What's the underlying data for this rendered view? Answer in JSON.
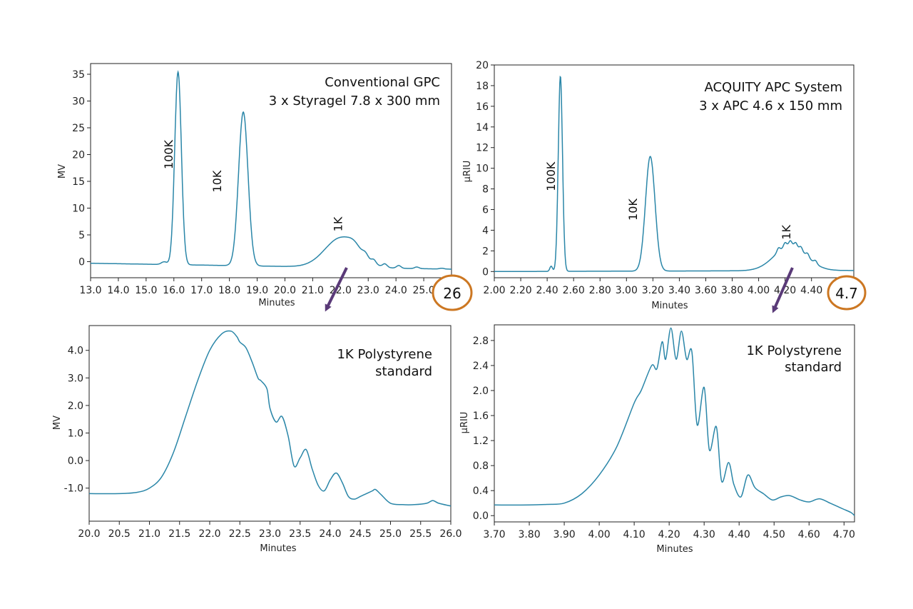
{
  "colors": {
    "trace": "#2a86a8",
    "axis": "#222222",
    "circle": "#cc7722",
    "arrow": "#5a3a78"
  },
  "callouts": [
    "26",
    "4.7"
  ],
  "chart_data": [
    {
      "type": "line",
      "title": "Conventional GPC",
      "subtitle": "3 x Styragel 7.8 x 300 mm",
      "xlabel": "Minutes",
      "ylabel": "MV",
      "xlim": [
        13.0,
        26.0
      ],
      "ylim": [
        -3,
        37
      ],
      "xticks": [
        "13.0",
        "14.0",
        "15.0",
        "16.0",
        "17.0",
        "18.0",
        "19.0",
        "20.0",
        "21.0",
        "22.0",
        "23.0",
        "24.0",
        "25.0"
      ],
      "yticks": [
        "0",
        "5",
        "10",
        "15",
        "20",
        "25",
        "30",
        "35"
      ],
      "peak_labels": [
        {
          "label": "100K",
          "x": 15.95,
          "y": 20
        },
        {
          "label": "10K",
          "x": 17.7,
          "y": 15
        },
        {
          "label": "1K",
          "x": 22.05,
          "y": 7
        }
      ],
      "baseline": {
        "x": [
          13.0,
          26.0
        ],
        "y": [
          -0.3,
          -1.4
        ]
      },
      "peaks": [
        {
          "x": 16.15,
          "h": 36.0,
          "w": 0.12
        },
        {
          "x": 15.65,
          "h": 0.5,
          "w": 0.1
        },
        {
          "x": 18.5,
          "h": 28.7,
          "w": 0.17
        },
        {
          "x": 22.05,
          "h": 5.6,
          "w": 0.6
        },
        {
          "x": 22.5,
          "h": 0.8,
          "w": 0.2
        },
        {
          "x": 22.9,
          "h": 0.8,
          "w": 0.1
        },
        {
          "x": 23.2,
          "h": 0.7,
          "w": 0.08
        },
        {
          "x": 23.6,
          "h": 0.6,
          "w": 0.08
        },
        {
          "x": 24.1,
          "h": 0.5,
          "w": 0.08
        },
        {
          "x": 24.75,
          "h": 0.3,
          "w": 0.08
        },
        {
          "x": 25.65,
          "h": 0.15,
          "w": 0.08
        }
      ]
    },
    {
      "type": "line",
      "title": "ACQUITY APC  System",
      "subtitle": "3 x APC  4.6 x 150 mm",
      "xlabel": "Minutes",
      "ylabel": "µRIU",
      "xlim": [
        2.0,
        4.72
      ],
      "ylim": [
        -0.6,
        20
      ],
      "xticks": [
        "2.00",
        "2.20",
        "2.40",
        "2.60",
        "2.80",
        "3.00",
        "3.20",
        "3.40",
        "3.60",
        "3.80",
        "4.00",
        "4.20",
        "4.40"
      ],
      "yticks": [
        "0",
        "2",
        "4",
        "6",
        "8",
        "10",
        "12",
        "14",
        "16",
        "18",
        "20"
      ],
      "peak_labels": [
        {
          "label": "100K",
          "x": 2.46,
          "y": 9.2
        },
        {
          "label": "10K",
          "x": 3.08,
          "y": 6.0
        },
        {
          "label": "1K",
          "x": 4.24,
          "y": 3.8
        }
      ],
      "baseline": {
        "x": [
          2.0,
          4.72
        ],
        "y": [
          0.0,
          0.1
        ]
      },
      "peaks": [
        {
          "x": 2.5,
          "h": 18.9,
          "w": 0.016
        },
        {
          "x": 2.43,
          "h": 0.5,
          "w": 0.01
        },
        {
          "x": 3.18,
          "h": 11.1,
          "w": 0.036
        },
        {
          "x": 4.24,
          "h": 2.4,
          "w": 0.12
        },
        {
          "x": 4.15,
          "h": 0.4,
          "w": 0.012
        },
        {
          "x": 4.2,
          "h": 0.45,
          "w": 0.012
        },
        {
          "x": 4.24,
          "h": 0.5,
          "w": 0.012
        },
        {
          "x": 4.28,
          "h": 0.45,
          "w": 0.012
        },
        {
          "x": 4.32,
          "h": 0.4,
          "w": 0.012
        },
        {
          "x": 4.37,
          "h": 0.35,
          "w": 0.012
        },
        {
          "x": 4.43,
          "h": 0.3,
          "w": 0.012
        }
      ]
    },
    {
      "type": "line",
      "title": "1K Polystyrene",
      "subtitle": "standard",
      "xlabel": "Minutes",
      "ylabel": "MV",
      "xlim": [
        20.0,
        26.0
      ],
      "ylim": [
        -2.2,
        4.9
      ],
      "xticks": [
        "20.0",
        "20.5",
        "21.0",
        "21.5",
        "22.0",
        "22.5",
        "23.0",
        "23.5",
        "24.0",
        "24.5",
        "25.0",
        "25.5",
        "26.0"
      ],
      "yticks": [
        "4.0",
        "3.0",
        "2.0",
        "1.0",
        "0.0",
        "-1.0"
      ],
      "ytick_values": [
        4.0,
        3.0,
        2.0,
        1.0,
        0.0,
        -1.0
      ],
      "x": [
        20.0,
        20.5,
        20.8,
        21.0,
        21.2,
        21.4,
        21.6,
        21.8,
        22.0,
        22.2,
        22.35,
        22.45,
        22.5,
        22.6,
        22.7,
        22.8,
        22.85,
        22.95,
        23.0,
        23.1,
        23.2,
        23.3,
        23.4,
        23.5,
        23.6,
        23.7,
        23.8,
        23.9,
        24.0,
        24.1,
        24.2,
        24.3,
        24.4,
        24.5,
        24.6,
        24.7,
        24.75,
        24.85,
        25.0,
        25.2,
        25.4,
        25.6,
        25.7,
        25.8,
        26.0
      ],
      "y": [
        -1.2,
        -1.2,
        -1.15,
        -1.0,
        -0.6,
        0.3,
        1.6,
        2.9,
        4.0,
        4.6,
        4.7,
        4.5,
        4.3,
        4.1,
        3.6,
        3.0,
        2.9,
        2.6,
        1.9,
        1.4,
        1.6,
        0.9,
        -0.2,
        0.1,
        0.4,
        -0.3,
        -0.9,
        -1.1,
        -0.7,
        -0.45,
        -0.8,
        -1.3,
        -1.4,
        -1.3,
        -1.2,
        -1.1,
        -1.05,
        -1.25,
        -1.55,
        -1.6,
        -1.6,
        -1.55,
        -1.45,
        -1.55,
        -1.65
      ]
    },
    {
      "type": "line",
      "title": "1K Polystyrene",
      "subtitle": "standard",
      "xlabel": "Minutes",
      "ylabel": "µRIU",
      "xlim": [
        3.7,
        4.73
      ],
      "ylim": [
        -0.1,
        3.05
      ],
      "xticks": [
        "3.70",
        "3.80",
        "3.90",
        "4.00",
        "4.10",
        "4.20",
        "4.30",
        "4.40",
        "4.50",
        "4.60",
        "4.70"
      ],
      "xtick_values": [
        3.7,
        3.8,
        3.9,
        4.0,
        4.1,
        4.2,
        4.3,
        4.4,
        4.5,
        4.6,
        4.7
      ],
      "yticks": [
        "0.0",
        "0.4",
        "0.8",
        "1.2",
        "1.6",
        "2.0",
        "2.4",
        "2.8"
      ],
      "ytick_values": [
        0.0,
        0.4,
        0.8,
        1.2,
        1.6,
        2.0,
        2.4,
        2.8
      ],
      "x": [
        3.7,
        3.8,
        3.85,
        3.9,
        3.95,
        4.0,
        4.05,
        4.1,
        4.12,
        4.15,
        4.165,
        4.18,
        4.19,
        4.205,
        4.22,
        4.235,
        4.25,
        4.265,
        4.28,
        4.3,
        4.315,
        4.335,
        4.35,
        4.37,
        4.385,
        4.405,
        4.425,
        4.445,
        4.47,
        4.495,
        4.52,
        4.545,
        4.575,
        4.6,
        4.63,
        4.66,
        4.68,
        4.7,
        4.72,
        4.73
      ],
      "y": [
        0.17,
        0.17,
        0.18,
        0.2,
        0.35,
        0.65,
        1.1,
        1.8,
        2.0,
        2.4,
        2.35,
        2.78,
        2.5,
        3.0,
        2.5,
        2.95,
        2.5,
        2.62,
        1.45,
        2.05,
        1.05,
        1.42,
        0.55,
        0.85,
        0.5,
        0.3,
        0.65,
        0.45,
        0.35,
        0.25,
        0.3,
        0.32,
        0.25,
        0.22,
        0.27,
        0.2,
        0.15,
        0.1,
        0.05,
        0.0
      ]
    }
  ]
}
